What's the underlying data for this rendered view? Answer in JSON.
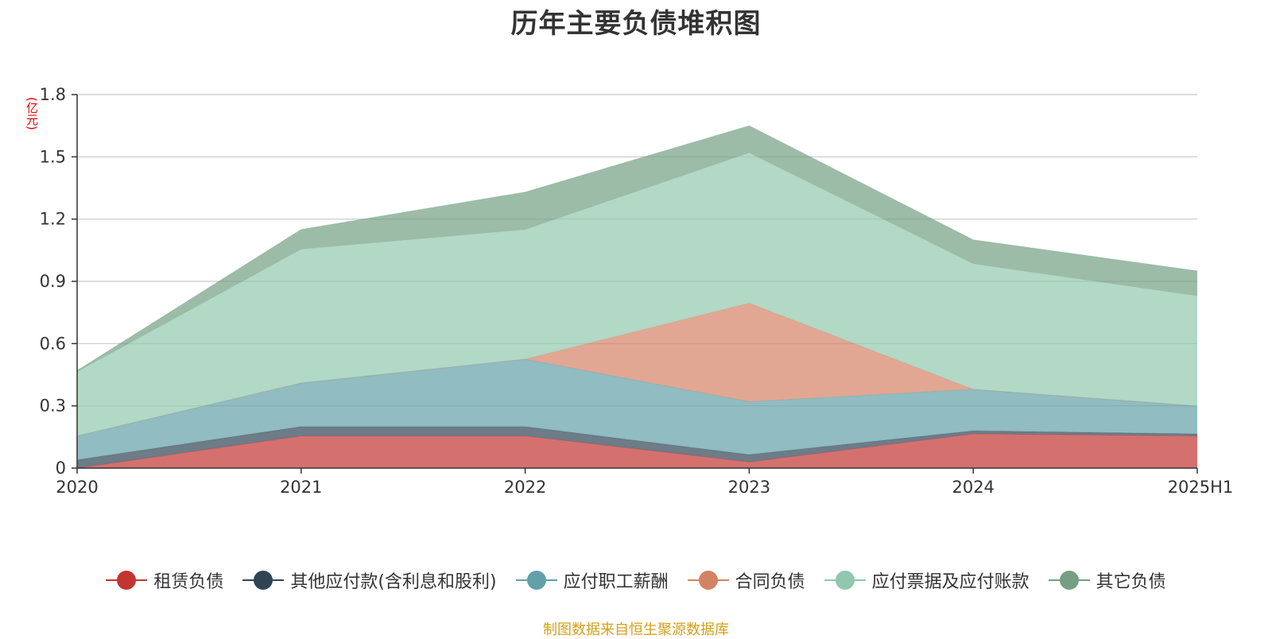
{
  "chart_data": {
    "type": "area",
    "stacked": true,
    "title": "历年主要负债堆积图",
    "unit_label": "(亿元)",
    "x": [
      "2020",
      "2021",
      "2022",
      "2023",
      "2024",
      "2025H1"
    ],
    "ylim": [
      0,
      1.8
    ],
    "yticks": [
      "0",
      "0.3",
      "0.6",
      "0.9",
      "1.2",
      "1.5",
      "1.8"
    ],
    "grid": true,
    "legend_position": "bottom",
    "series": [
      {
        "name": "租赁负债",
        "color": "#c23531",
        "values": [
          0.0,
          0.155,
          0.155,
          0.03,
          0.165,
          0.155
        ]
      },
      {
        "name": "其他应付款(含利息和股利)",
        "color": "#2f4554",
        "values": [
          0.04,
          0.045,
          0.045,
          0.035,
          0.015,
          0.01
        ]
      },
      {
        "name": "应付职工薪酬",
        "color": "#61a0a8",
        "values": [
          0.115,
          0.21,
          0.325,
          0.255,
          0.2,
          0.135
        ]
      },
      {
        "name": "合同负债",
        "color": "#d48265",
        "values": [
          0.0,
          0.0,
          0.0,
          0.475,
          0.0,
          0.0
        ]
      },
      {
        "name": "应付票据及应付账款",
        "color": "#91c7ae",
        "values": [
          0.31,
          0.645,
          0.625,
          0.725,
          0.605,
          0.53
        ]
      },
      {
        "name": "其它负债",
        "color": "#749f83",
        "values": [
          0.005,
          0.095,
          0.18,
          0.13,
          0.115,
          0.12
        ]
      }
    ]
  },
  "footer_note": "制图数据来自恒生聚源数据库"
}
